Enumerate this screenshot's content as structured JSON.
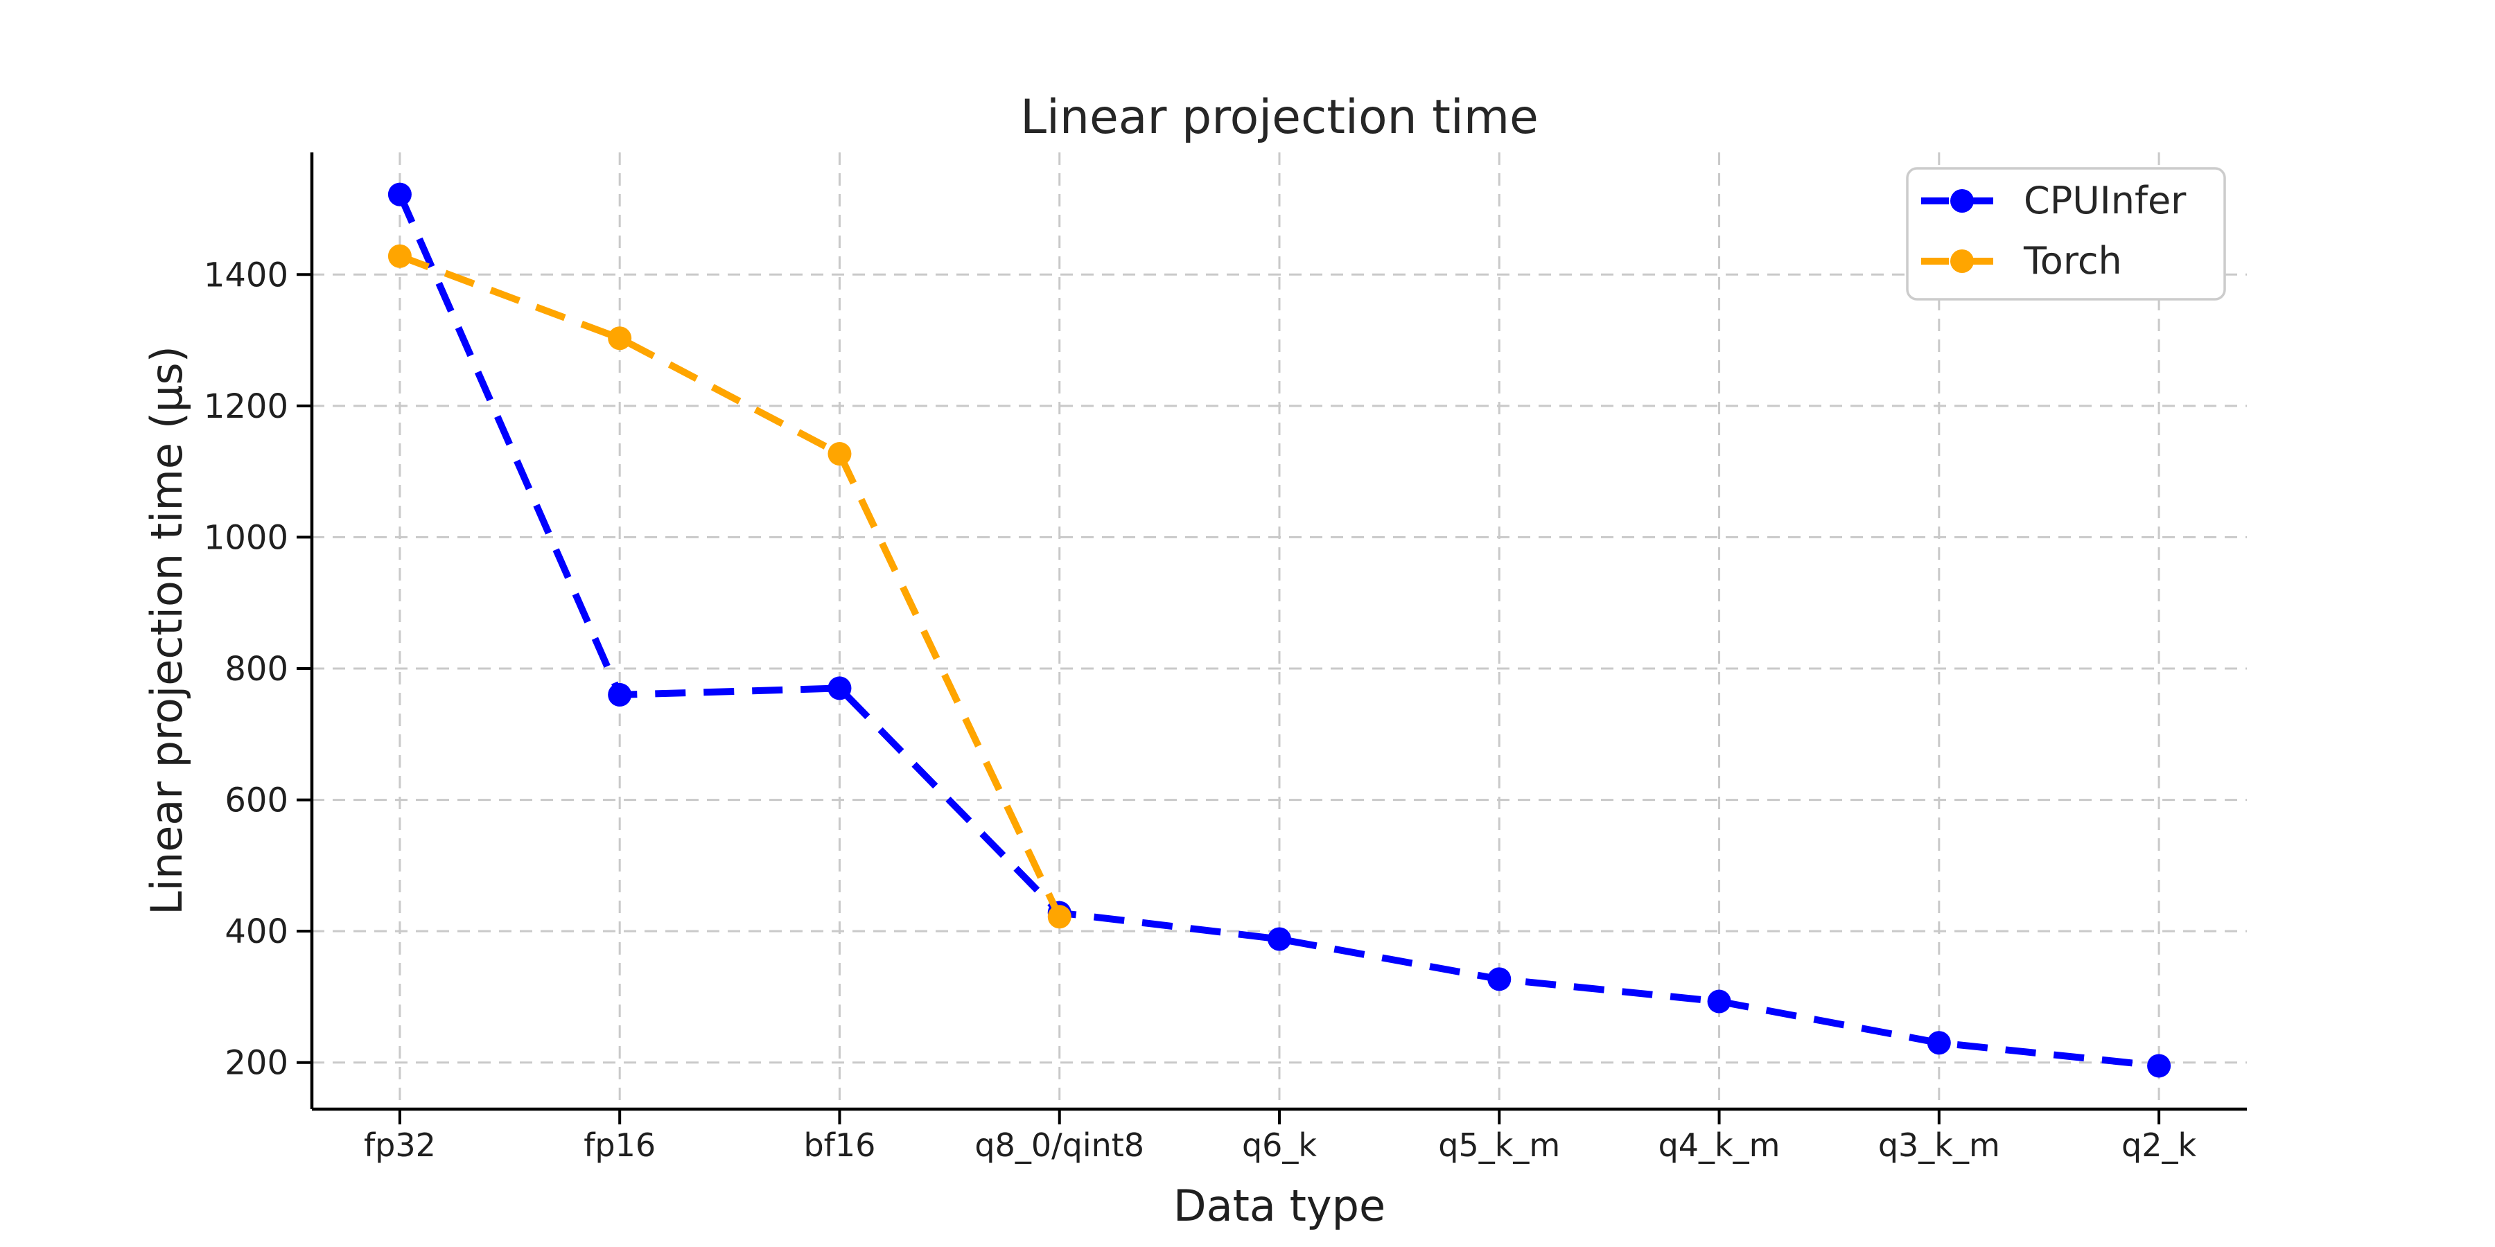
{
  "figure": {
    "background": "#ffffff",
    "text_color": "#1f1f1f"
  },
  "chart_data": {
    "type": "line",
    "title": "Linear projection time",
    "xlabel": "Data type",
    "ylabel": "Linear projection time (μs)",
    "categories": [
      "fp32",
      "fp16",
      "bf16",
      "q8_0/qint8",
      "q6_k",
      "q5_k_m",
      "q4_k_m",
      "q3_k_m",
      "q2_k"
    ],
    "series": [
      {
        "name": "CPUInfer",
        "color": "#0000ff",
        "values": [
          1522,
          760,
          770,
          428,
          388,
          327,
          293,
          230,
          195
        ]
      },
      {
        "name": "Torch",
        "color": "#ffa500",
        "values": [
          1428,
          1303,
          1127,
          422,
          null,
          null,
          null,
          null,
          null
        ]
      }
    ],
    "yticks": [
      200,
      400,
      600,
      800,
      1000,
      1200,
      1400
    ],
    "ylim": [
      129,
      1586
    ],
    "xlim_pad": 0.4,
    "grid": true,
    "grid_color": "#c9c9c9",
    "spine_color": "#000000",
    "line_style": "dashed",
    "marker": "circle",
    "legend_position": "upper right"
  }
}
